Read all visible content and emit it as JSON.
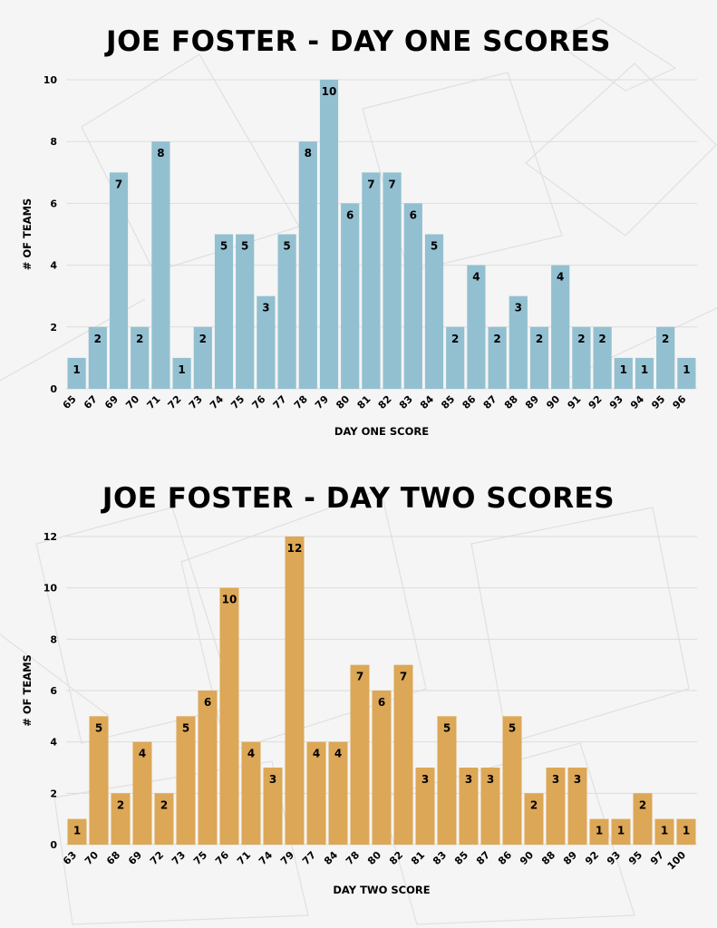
{
  "colors": {
    "background": "#f5f5f5",
    "grid": "#dddddd",
    "text": "#000000"
  },
  "chart_data": [
    {
      "type": "bar",
      "title": "JOE FOSTER - DAY ONE SCORES",
      "xlabel": "DAY ONE SCORE",
      "ylabel": "# OF TEAMS",
      "ylim": [
        0,
        10
      ],
      "yticks": [
        0,
        2,
        4,
        6,
        8,
        10
      ],
      "grid": true,
      "color": "#93c0d0",
      "categories": [
        "65",
        "67",
        "69",
        "70",
        "71",
        "72",
        "73",
        "74",
        "75",
        "76",
        "77",
        "78",
        "79",
        "80",
        "81",
        "82",
        "83",
        "84",
        "85",
        "86",
        "87",
        "88",
        "89",
        "90",
        "91",
        "92",
        "93",
        "94",
        "95",
        "96"
      ],
      "values": [
        1,
        2,
        7,
        2,
        8,
        1,
        2,
        5,
        5,
        3,
        5,
        8,
        10,
        6,
        7,
        7,
        6,
        5,
        2,
        4,
        2,
        3,
        2,
        4,
        2,
        2,
        1,
        1,
        2,
        1
      ]
    },
    {
      "type": "bar",
      "title": "JOE FOSTER - DAY TWO SCORES",
      "xlabel": "DAY TWO SCORE",
      "ylabel": "# OF TEAMS",
      "ylim": [
        0,
        12
      ],
      "yticks": [
        0,
        2,
        4,
        6,
        8,
        10,
        12
      ],
      "grid": true,
      "color": "#dca756",
      "categories": [
        "63",
        "70",
        "68",
        "69",
        "72",
        "73",
        "75",
        "76",
        "71",
        "74",
        "79",
        "77",
        "84",
        "78",
        "80",
        "82",
        "81",
        "83",
        "85",
        "87",
        "86",
        "90",
        "88",
        "89",
        "92",
        "93",
        "95",
        "97",
        "100"
      ],
      "values": [
        1,
        5,
        2,
        4,
        2,
        5,
        6,
        10,
        4,
        3,
        12,
        4,
        4,
        7,
        6,
        7,
        3,
        5,
        3,
        3,
        5,
        2,
        3,
        3,
        1,
        1,
        2,
        1,
        1
      ]
    }
  ]
}
